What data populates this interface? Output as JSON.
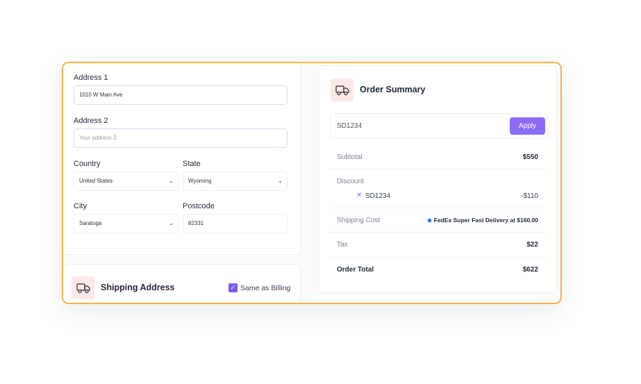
{
  "billing": {
    "address1_label": "Address 1",
    "address1_value": "1010 W Main Ave",
    "address2_label": "Address 2",
    "address2_placeholder": "Your address 2",
    "country_label": "Country",
    "country_value": "United States",
    "state_label": "State",
    "state_value": "Wyoming",
    "city_label": "City",
    "city_value": "Saratoga",
    "postcode_label": "Postcode",
    "postcode_value": "82331"
  },
  "shipping": {
    "title": "Shipping Address",
    "same_as_billing_label": "Same as Billing",
    "same_as_billing_checked": true,
    "icon": "truck-icon"
  },
  "summary": {
    "title": "Order Summary",
    "icon": "truck-icon",
    "coupon_value": "SD1234",
    "apply_label": "Apply",
    "subtotal_label": "Subtotal",
    "subtotal_value": "$550",
    "discount_label": "Discount",
    "discount_code": "SD1234",
    "discount_value": "-$110",
    "shipping_label": "Shipping Cost",
    "shipping_option": "FedEx Super Fast Delivery at $160.00",
    "tax_label": "Tax",
    "tax_value": "$22",
    "total_label": "Order Total",
    "total_value": "$622"
  },
  "colors": {
    "accent": "#8b6cf6",
    "frame": "#f8b04a",
    "icon_bg": "#fde8e8"
  }
}
